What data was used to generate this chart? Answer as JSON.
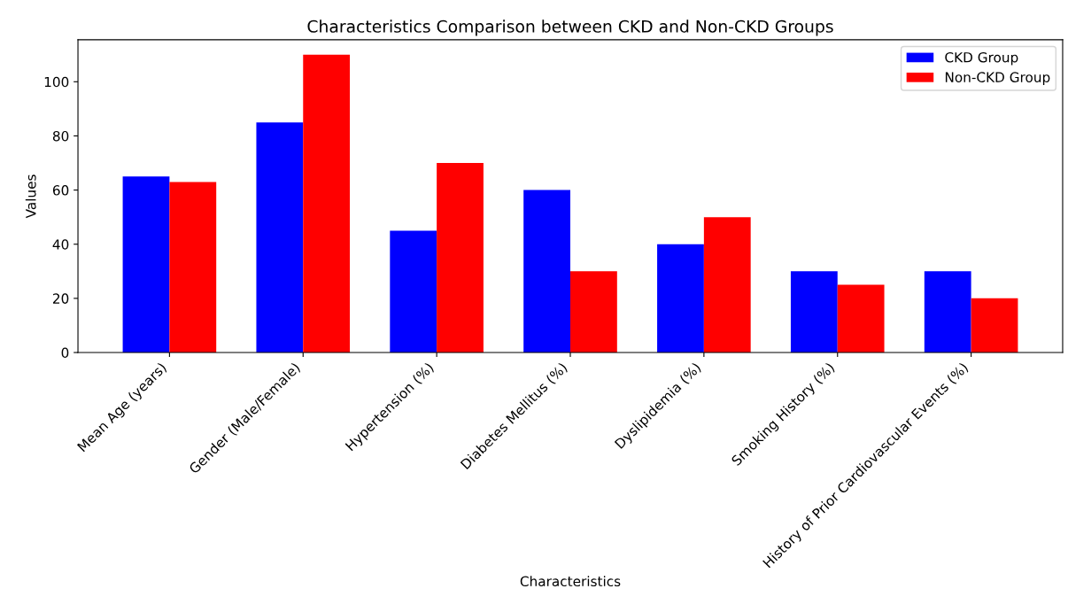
{
  "chart_data": {
    "type": "bar",
    "title": "Characteristics Comparison between CKD and Non-CKD Groups",
    "xlabel": "Characteristics",
    "ylabel": "Values",
    "categories": [
      "Mean Age (years)",
      "Gender (Male/Female)",
      "Hypertension (%)",
      "Diabetes Mellitus (%)",
      "Dyslipidemia (%)",
      "Smoking History (%)",
      "History of Prior Cardiovascular Events (%)"
    ],
    "series": [
      {
        "name": "CKD Group",
        "color": "#0000ff",
        "values": [
          65,
          85,
          45,
          60,
          40,
          30,
          30
        ]
      },
      {
        "name": "Non-CKD Group",
        "color": "#ff0000",
        "values": [
          63,
          110,
          70,
          30,
          50,
          25,
          20
        ]
      }
    ],
    "ylim": [
      0,
      115.5
    ],
    "yticks": [
      0,
      20,
      40,
      60,
      80,
      100
    ],
    "grid": false,
    "legend": "top right"
  }
}
